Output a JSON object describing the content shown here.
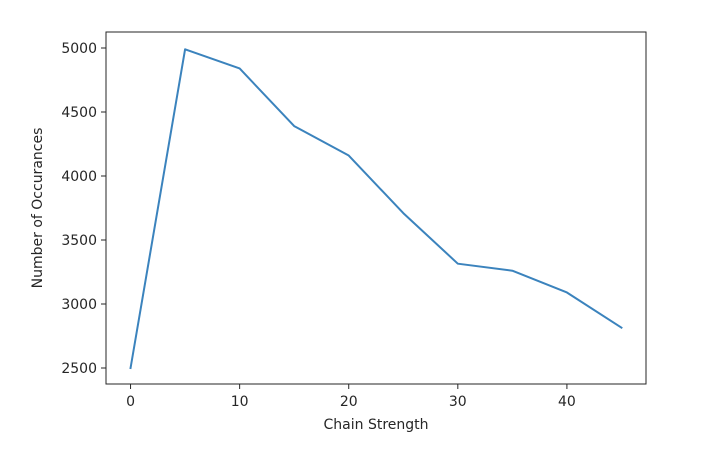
{
  "chart_data": {
    "type": "line",
    "title": "",
    "xlabel": "Chain Strength",
    "ylabel": "Number of Occurances",
    "xlim": [
      -2.25,
      47.25
    ],
    "ylim": [
      2375,
      5125
    ],
    "xticks": [
      0,
      10,
      20,
      30,
      40
    ],
    "yticks": [
      2500,
      3000,
      3500,
      4000,
      4500,
      5000
    ],
    "grid": false,
    "legend": "none",
    "series": [
      {
        "color": "#3b83bd",
        "x": [
          0,
          5,
          10,
          15,
          20,
          25,
          30,
          35,
          40,
          45
        ],
        "y": [
          2500,
          4990,
          4840,
          4390,
          4160,
          3710,
          3315,
          3260,
          3090,
          2815
        ]
      }
    ]
  }
}
